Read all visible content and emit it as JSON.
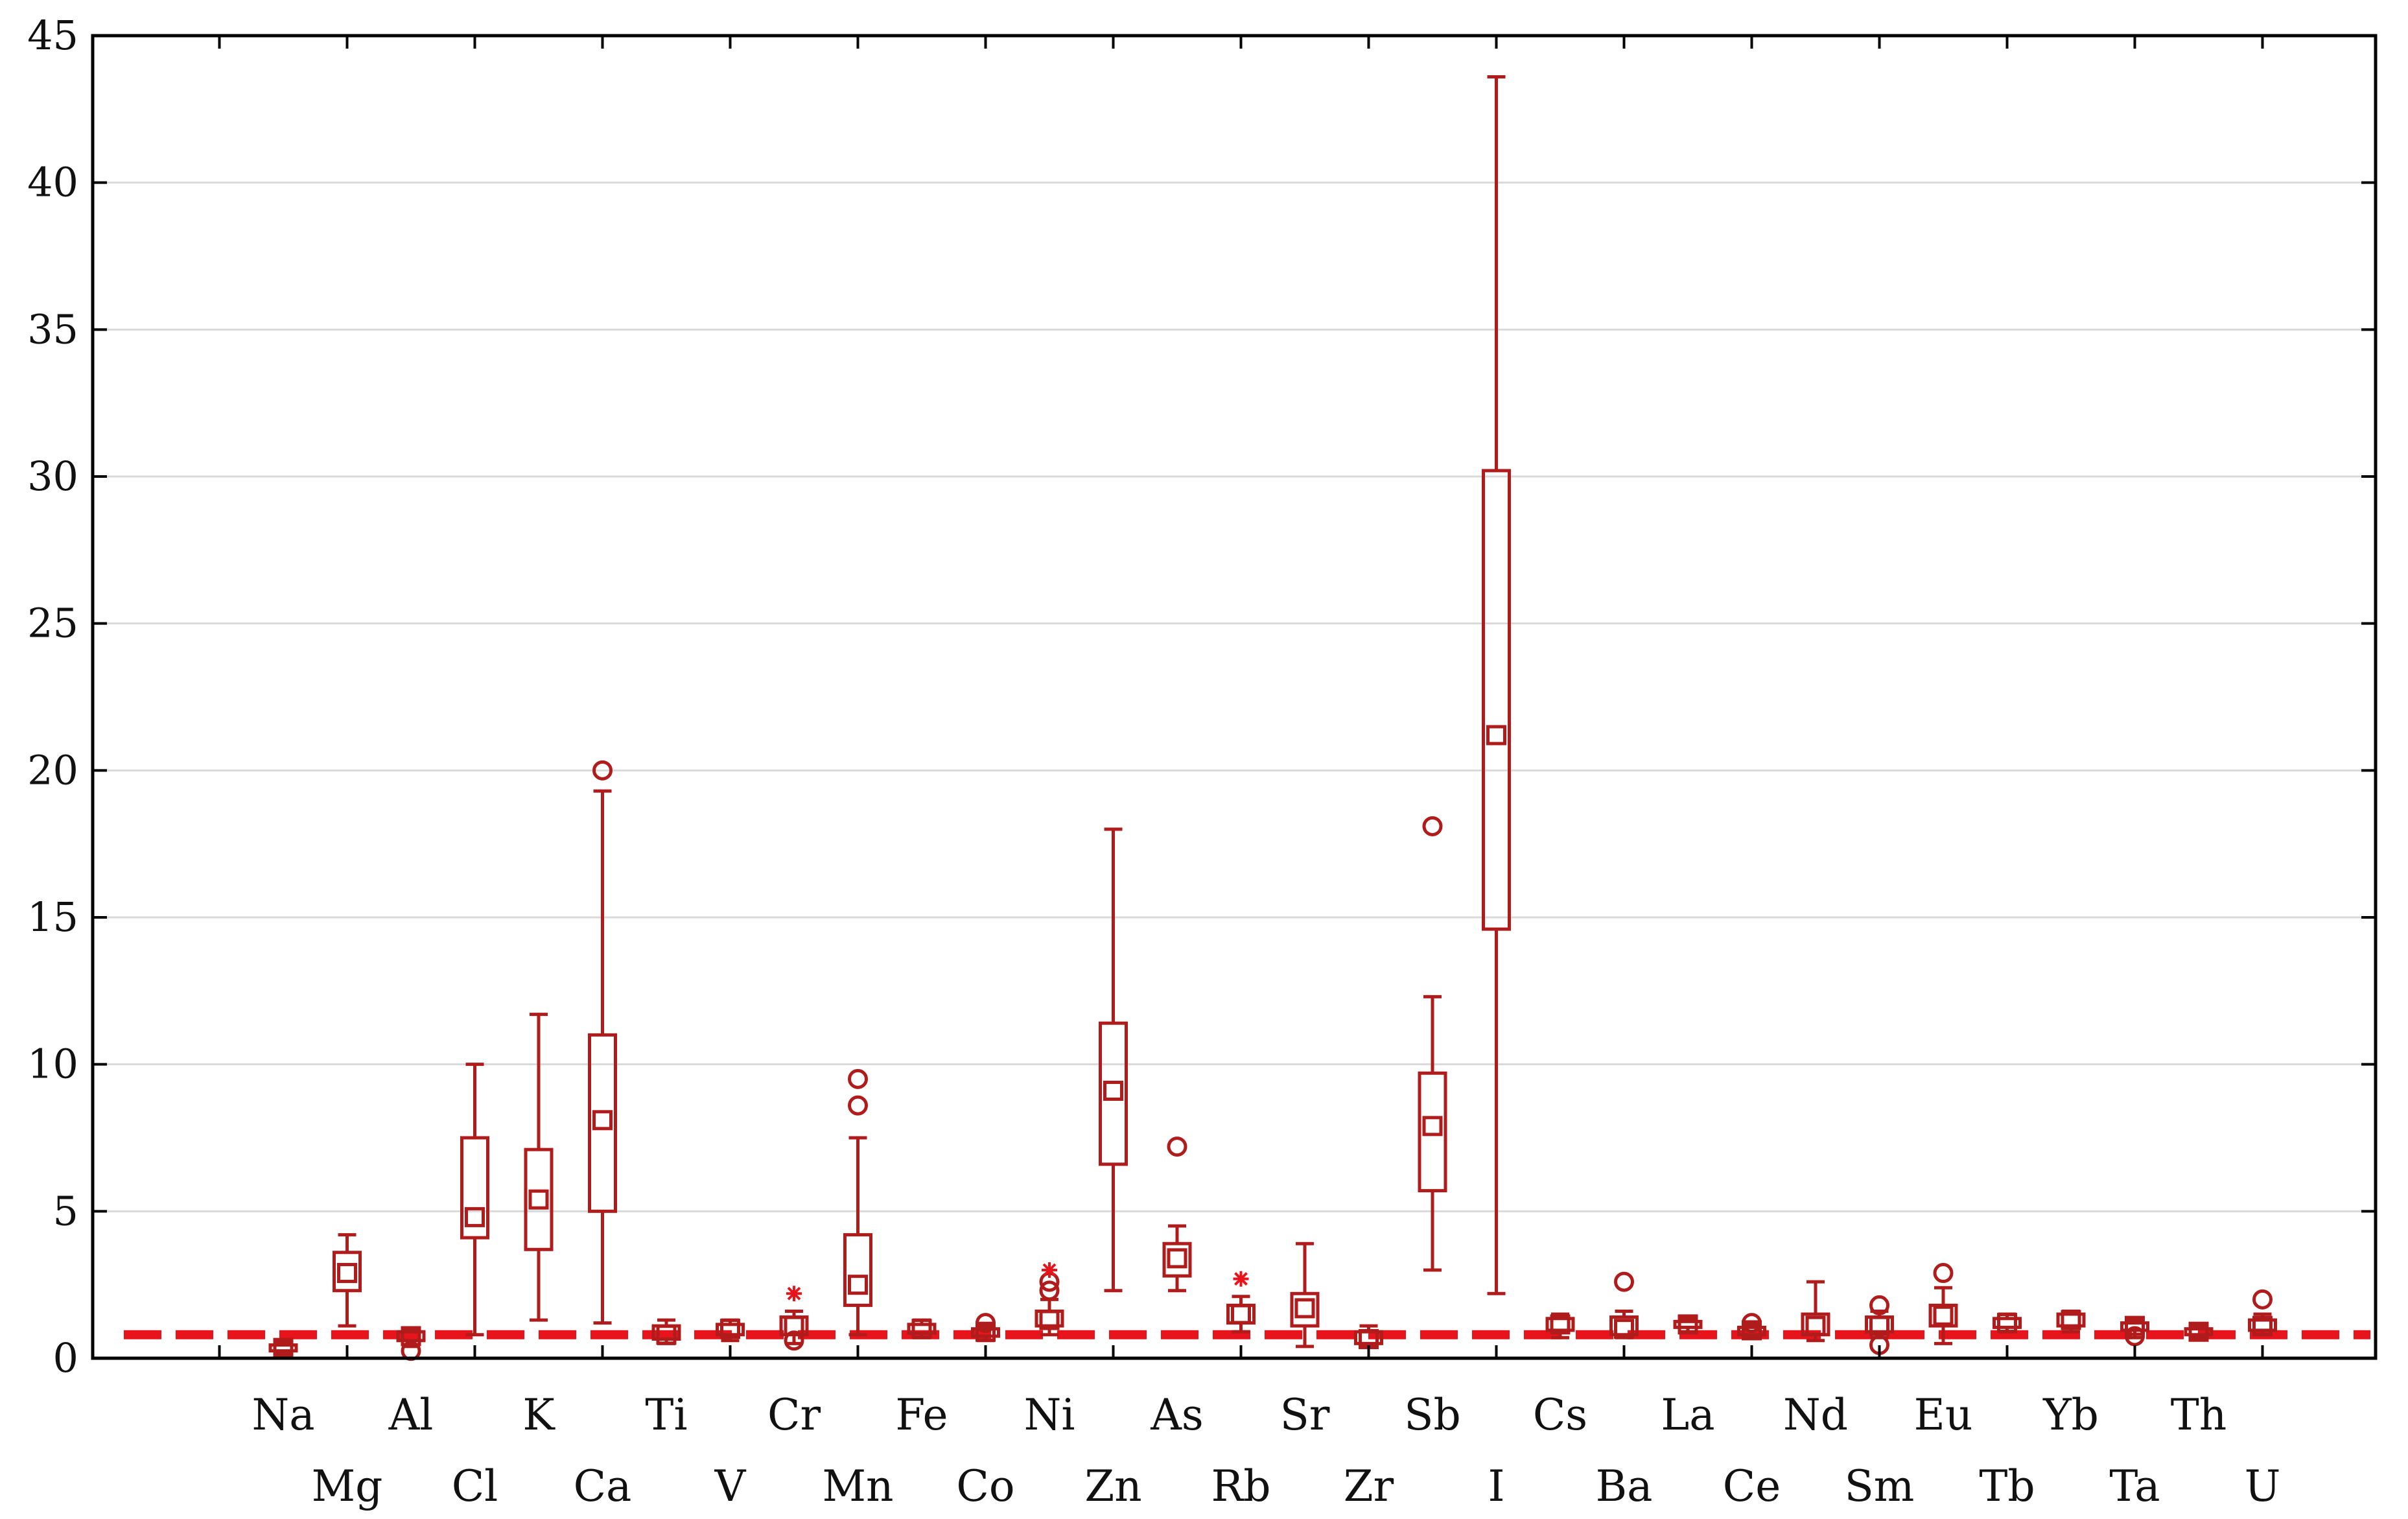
{
  "chart_data": {
    "type": "box",
    "categories": [
      "Na",
      "Mg",
      "Al",
      "Cl",
      "K",
      "Ca",
      "Ti",
      "V",
      "Cr",
      "Mn",
      "Fe",
      "Co",
      "Ni",
      "Zn",
      "As",
      "Rb",
      "Sr",
      "Zr",
      "Sb",
      "I",
      "Cs",
      "Ba",
      "La",
      "Ce",
      "Nd",
      "Sm",
      "Eu",
      "Tb",
      "Yb",
      "Ta",
      "Th",
      "U"
    ],
    "ylim": [
      0,
      45
    ],
    "yticks": [
      "0",
      "5",
      "10",
      "15",
      "20",
      "25",
      "30",
      "35",
      "40",
      "45"
    ],
    "grid": true,
    "reference_line": {
      "y": 0.8,
      "style": "dashed",
      "color": "#e8141c"
    },
    "box_color": "#b01c1c",
    "boxes": [
      {
        "name": "Na",
        "whisker_low": 0.15,
        "q1": 0.25,
        "median": 0.35,
        "q3": 0.45,
        "whisker_high": 0.55,
        "outliers": [],
        "extremes": []
      },
      {
        "name": "Mg",
        "whisker_low": 1.1,
        "q1": 2.3,
        "median": 2.9,
        "q3": 3.6,
        "whisker_high": 4.2,
        "outliers": [],
        "extremes": []
      },
      {
        "name": "Al",
        "whisker_low": 0.4,
        "q1": 0.6,
        "median": 0.75,
        "q3": 0.9,
        "whisker_high": 1.0,
        "outliers": [
          0.25
        ],
        "extremes": []
      },
      {
        "name": "Cl",
        "whisker_low": 0.8,
        "q1": 4.1,
        "median": 4.8,
        "q3": 7.5,
        "whisker_high": 10.0,
        "outliers": [],
        "extremes": []
      },
      {
        "name": "K",
        "whisker_low": 1.3,
        "q1": 3.7,
        "median": 5.4,
        "q3": 7.1,
        "whisker_high": 11.7,
        "outliers": [],
        "extremes": []
      },
      {
        "name": "Ca",
        "whisker_low": 1.2,
        "q1": 5.0,
        "median": 8.1,
        "q3": 11.0,
        "whisker_high": 19.3,
        "outliers": [
          20.0
        ],
        "extremes": []
      },
      {
        "name": "Ti",
        "whisker_low": 0.5,
        "q1": 0.65,
        "median": 0.8,
        "q3": 1.1,
        "whisker_high": 1.3,
        "outliers": [],
        "extremes": []
      },
      {
        "name": "V",
        "whisker_low": 0.6,
        "q1": 0.8,
        "median": 1.0,
        "q3": 1.15,
        "whisker_high": 1.3,
        "outliers": [],
        "extremes": []
      },
      {
        "name": "Cr",
        "whisker_low": 0.5,
        "q1": 0.8,
        "median": 1.1,
        "q3": 1.4,
        "whisker_high": 1.6,
        "outliers": [
          0.6
        ],
        "extremes": [
          2.2
        ]
      },
      {
        "name": "Mn",
        "whisker_low": 0.8,
        "q1": 1.8,
        "median": 2.5,
        "q3": 4.2,
        "whisker_high": 7.5,
        "outliers": [
          8.6,
          9.5
        ],
        "extremes": []
      },
      {
        "name": "Fe",
        "whisker_low": 0.7,
        "q1": 0.85,
        "median": 1.0,
        "q3": 1.15,
        "whisker_high": 1.3,
        "outliers": [],
        "extremes": []
      },
      {
        "name": "Co",
        "whisker_low": 0.6,
        "q1": 0.75,
        "median": 0.9,
        "q3": 1.0,
        "whisker_high": 1.1,
        "outliers": [
          1.2
        ],
        "extremes": []
      },
      {
        "name": "Ni",
        "whisker_low": 0.8,
        "q1": 1.1,
        "median": 1.3,
        "q3": 1.6,
        "whisker_high": 2.0,
        "outliers": [
          2.3,
          2.6
        ],
        "extremes": [
          3.0
        ]
      },
      {
        "name": "Zn",
        "whisker_low": 2.3,
        "q1": 6.6,
        "median": 9.1,
        "q3": 11.4,
        "whisker_high": 18.0,
        "outliers": [],
        "extremes": []
      },
      {
        "name": "As",
        "whisker_low": 2.3,
        "q1": 2.8,
        "median": 3.4,
        "q3": 3.9,
        "whisker_high": 4.5,
        "outliers": [
          7.2
        ],
        "extremes": []
      },
      {
        "name": "Rb",
        "whisker_low": 0.9,
        "q1": 1.2,
        "median": 1.5,
        "q3": 1.8,
        "whisker_high": 2.1,
        "outliers": [],
        "extremes": [
          2.7
        ]
      },
      {
        "name": "Sr",
        "whisker_low": 0.4,
        "q1": 1.1,
        "median": 1.7,
        "q3": 2.2,
        "whisker_high": 3.9,
        "outliers": [],
        "extremes": []
      },
      {
        "name": "Zr",
        "whisker_low": 0.4,
        "q1": 0.5,
        "median": 0.65,
        "q3": 0.9,
        "whisker_high": 1.1,
        "outliers": [],
        "extremes": []
      },
      {
        "name": "Sb",
        "whisker_low": 3.0,
        "q1": 5.7,
        "median": 7.9,
        "q3": 9.7,
        "whisker_high": 12.3,
        "outliers": [
          18.1
        ],
        "extremes": []
      },
      {
        "name": "I",
        "whisker_low": 2.2,
        "q1": 14.6,
        "median": 21.2,
        "q3": 30.2,
        "whisker_high": 43.6,
        "outliers": [],
        "extremes": []
      },
      {
        "name": "Cs",
        "whisker_low": 0.7,
        "q1": 0.95,
        "median": 1.15,
        "q3": 1.35,
        "whisker_high": 1.5,
        "outliers": [],
        "extremes": []
      },
      {
        "name": "Ba",
        "whisker_low": 0.7,
        "q1": 0.8,
        "median": 1.0,
        "q3": 1.4,
        "whisker_high": 1.6,
        "outliers": [
          2.6
        ],
        "extremes": []
      },
      {
        "name": "La",
        "whisker_low": 0.9,
        "q1": 1.05,
        "median": 1.15,
        "q3": 1.25,
        "whisker_high": 1.35,
        "outliers": [],
        "extremes": []
      },
      {
        "name": "Ce",
        "whisker_low": 0.7,
        "q1": 0.8,
        "median": 0.95,
        "q3": 1.05,
        "whisker_high": 1.15,
        "outliers": [
          1.2
        ],
        "extremes": []
      },
      {
        "name": "Nd",
        "whisker_low": 0.6,
        "q1": 0.8,
        "median": 1.1,
        "q3": 1.5,
        "whisker_high": 2.6,
        "outliers": [],
        "extremes": []
      },
      {
        "name": "Sm",
        "whisker_low": 0.7,
        "q1": 0.9,
        "median": 1.1,
        "q3": 1.4,
        "whisker_high": 1.6,
        "outliers": [
          0.45,
          1.8
        ],
        "extremes": []
      },
      {
        "name": "Eu",
        "whisker_low": 0.5,
        "q1": 1.1,
        "median": 1.45,
        "q3": 1.8,
        "whisker_high": 2.4,
        "outliers": [
          2.9
        ],
        "extremes": []
      },
      {
        "name": "Tb",
        "whisker_low": 0.9,
        "q1": 1.05,
        "median": 1.2,
        "q3": 1.35,
        "whisker_high": 1.5,
        "outliers": [],
        "extremes": []
      },
      {
        "name": "Yb",
        "whisker_low": 0.9,
        "q1": 1.1,
        "median": 1.3,
        "q3": 1.5,
        "whisker_high": 1.6,
        "outliers": [],
        "extremes": []
      },
      {
        "name": "Ta",
        "whisker_low": 0.7,
        "q1": 0.95,
        "median": 1.1,
        "q3": 1.2,
        "whisker_high": 1.3,
        "outliers": [
          0.75
        ],
        "extremes": []
      },
      {
        "name": "Th",
        "whisker_low": 0.7,
        "q1": 0.8,
        "median": 0.9,
        "q3": 1.0,
        "whisker_high": 1.1,
        "outliers": [],
        "extremes": []
      },
      {
        "name": "U",
        "whisker_low": 0.8,
        "q1": 0.95,
        "median": 1.1,
        "q3": 1.3,
        "whisker_high": 1.5,
        "outliers": [
          2.0
        ],
        "extremes": []
      }
    ]
  }
}
